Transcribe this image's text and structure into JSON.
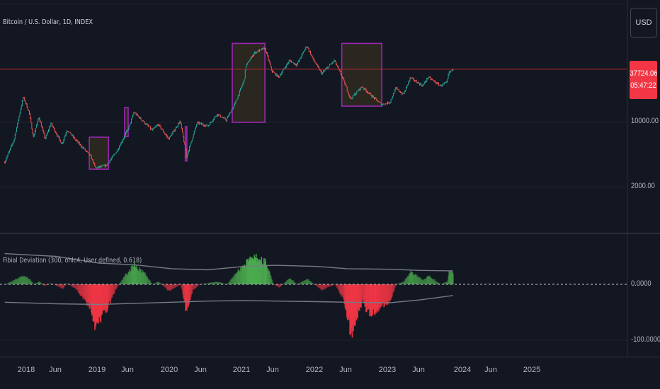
{
  "header": {
    "symbol_title": "Bitcoin / U.S. Dollar, 1D, INDEX",
    "currency": "USD"
  },
  "price_tag": {
    "price": "37724.06",
    "countdown": "05:47:22"
  },
  "indicator": {
    "label": "Fibial Deviation (300, ohlc4, User defined, 0.618)"
  },
  "colors": {
    "background": "#131722",
    "positive_fill": "#4caf50",
    "negative_fill": "#f23645",
    "band_line": "#787b86",
    "box_border": "#9c27b0",
    "box_fill": "#2e2a20",
    "price_line": "#b22833"
  },
  "chart_data": [
    {
      "type": "candlestick",
      "title": "Bitcoin / U.S. Dollar, 1D, INDEX",
      "y_scale": "log",
      "y_ticks": [
        "10000.00",
        "2000.00"
      ],
      "x_ticks": [
        "2018",
        "Jun",
        "2019",
        "Jun",
        "2020",
        "Jun",
        "2021",
        "Jun",
        "2022",
        "Jun",
        "2023",
        "Jun",
        "2024",
        "Jun",
        "2025"
      ],
      "x_range": [
        "2017-09-15",
        "2025-09-01"
      ],
      "current_price": 37724.06,
      "price_points": [
        [
          "2017-09-15",
          3700
        ],
        [
          "2017-11-01",
          6500
        ],
        [
          "2017-12-17",
          19000
        ],
        [
          "2018-01-15",
          13000
        ],
        [
          "2018-02-06",
          6900
        ],
        [
          "2018-03-05",
          11500
        ],
        [
          "2018-04-06",
          6600
        ],
        [
          "2018-05-05",
          9800
        ],
        [
          "2018-06-29",
          5800
        ],
        [
          "2018-07-25",
          8300
        ],
        [
          "2018-09-10",
          6300
        ],
        [
          "2018-11-20",
          4300
        ],
        [
          "2018-12-15",
          3200
        ],
        [
          "2019-02-07",
          3400
        ],
        [
          "2019-04-02",
          4900
        ],
        [
          "2019-05-30",
          8700
        ],
        [
          "2019-06-26",
          12900
        ],
        [
          "2019-08-15",
          10100
        ],
        [
          "2019-09-25",
          8200
        ],
        [
          "2019-10-26",
          9500
        ],
        [
          "2019-12-17",
          6600
        ],
        [
          "2020-02-13",
          10300
        ],
        [
          "2020-03-12",
          4900
        ],
        [
          "2020-03-13",
          4000
        ],
        [
          "2020-05-08",
          9900
        ],
        [
          "2020-07-01",
          9100
        ],
        [
          "2020-08-17",
          12300
        ],
        [
          "2020-10-01",
          10600
        ],
        [
          "2020-11-15",
          16000
        ],
        [
          "2020-12-31",
          29000
        ],
        [
          "2021-01-08",
          41000
        ],
        [
          "2021-02-20",
          57000
        ],
        [
          "2021-04-14",
          64000
        ],
        [
          "2021-05-19",
          36000
        ],
        [
          "2021-06-22",
          31000
        ],
        [
          "2021-08-15",
          47000
        ],
        [
          "2021-09-20",
          42000
        ],
        [
          "2021-11-10",
          68000
        ],
        [
          "2021-12-15",
          47000
        ],
        [
          "2022-01-24",
          34000
        ],
        [
          "2022-03-29",
          47000
        ],
        [
          "2022-05-10",
          30000
        ],
        [
          "2022-06-18",
          18000
        ],
        [
          "2022-08-14",
          24500
        ],
        [
          "2022-10-01",
          19500
        ],
        [
          "2022-11-21",
          15600
        ],
        [
          "2023-01-01",
          16500
        ],
        [
          "2023-02-01",
          23500
        ],
        [
          "2023-03-10",
          20000
        ],
        [
          "2023-04-14",
          30500
        ],
        [
          "2023-06-15",
          25000
        ],
        [
          "2023-07-13",
          31000
        ],
        [
          "2023-09-11",
          25000
        ],
        [
          "2023-10-15",
          27000
        ],
        [
          "2023-10-24",
          34500
        ],
        [
          "2023-11-15",
          37724
        ]
      ],
      "highlight_boxes": [
        {
          "start": "2018-11-14",
          "end": "2019-02-18",
          "low": 3100,
          "high": 6900
        },
        {
          "start": "2019-05-10",
          "end": "2019-05-28",
          "low": 7000,
          "high": 14500
        },
        {
          "start": "2020-03-10",
          "end": "2020-03-18",
          "low": 3800,
          "high": 9000
        },
        {
          "start": "2020-11-01",
          "end": "2021-04-14",
          "low": 10000,
          "high": 72000
        },
        {
          "start": "2022-05-05",
          "end": "2022-11-22",
          "low": 15000,
          "high": 72000
        }
      ]
    },
    {
      "type": "area",
      "title": "Fibial Deviation (300, ohlc4, User defined, 0.618)",
      "y_ticks": [
        "0.0000",
        "-100.0000"
      ],
      "zero_line": "dashed",
      "points": [
        [
          "2017-09-15",
          0
        ],
        [
          "2017-12-17",
          15
        ],
        [
          "2018-01-20",
          8
        ],
        [
          "2018-02-06",
          0
        ],
        [
          "2018-03-05",
          5
        ],
        [
          "2018-04-01",
          -3
        ],
        [
          "2018-05-05",
          2
        ],
        [
          "2018-06-29",
          -8
        ],
        [
          "2018-07-25",
          2
        ],
        [
          "2018-09-10",
          -10
        ],
        [
          "2018-11-15",
          -40
        ],
        [
          "2018-12-15",
          -78
        ],
        [
          "2019-01-15",
          -55
        ],
        [
          "2019-02-15",
          -40
        ],
        [
          "2019-03-20",
          -12
        ],
        [
          "2019-04-10",
          0
        ],
        [
          "2019-05-15",
          18
        ],
        [
          "2019-06-26",
          35
        ],
        [
          "2019-08-10",
          22
        ],
        [
          "2019-09-25",
          0
        ],
        [
          "2019-10-26",
          5
        ],
        [
          "2019-12-17",
          -12
        ],
        [
          "2020-02-13",
          0
        ],
        [
          "2020-03-13",
          -48
        ],
        [
          "2020-04-15",
          -10
        ],
        [
          "2020-05-20",
          0
        ],
        [
          "2020-08-17",
          5
        ],
        [
          "2020-10-01",
          0
        ],
        [
          "2020-11-15",
          18
        ],
        [
          "2021-01-08",
          38
        ],
        [
          "2021-02-20",
          48
        ],
        [
          "2021-04-14",
          40
        ],
        [
          "2021-05-25",
          0
        ],
        [
          "2021-06-22",
          -6
        ],
        [
          "2021-08-15",
          12
        ],
        [
          "2021-09-20",
          0
        ],
        [
          "2021-11-10",
          10
        ],
        [
          "2021-12-15",
          0
        ],
        [
          "2022-01-24",
          -10
        ],
        [
          "2022-03-29",
          0
        ],
        [
          "2022-05-10",
          -25
        ],
        [
          "2022-06-18",
          -88
        ],
        [
          "2022-07-20",
          -55
        ],
        [
          "2022-08-14",
          -30
        ],
        [
          "2022-09-20",
          -55
        ],
        [
          "2022-11-21",
          -38
        ],
        [
          "2022-12-30",
          -30
        ],
        [
          "2023-02-01",
          0
        ],
        [
          "2023-03-10",
          5
        ],
        [
          "2023-04-14",
          22
        ],
        [
          "2023-06-15",
          8
        ],
        [
          "2023-07-13",
          15
        ],
        [
          "2023-09-11",
          0
        ],
        [
          "2023-10-15",
          5
        ],
        [
          "2023-10-24",
          22
        ],
        [
          "2023-11-15",
          22
        ]
      ],
      "upper_band": [
        [
          "2017-09-15",
          55
        ],
        [
          "2018-06-01",
          50
        ],
        [
          "2019-01-01",
          38
        ],
        [
          "2019-07-01",
          35
        ],
        [
          "2020-01-01",
          28
        ],
        [
          "2020-07-01",
          26
        ],
        [
          "2021-01-01",
          32
        ],
        [
          "2021-06-01",
          34
        ],
        [
          "2022-01-01",
          32
        ],
        [
          "2022-06-01",
          28
        ],
        [
          "2023-01-01",
          27
        ],
        [
          "2023-06-01",
          25
        ],
        [
          "2023-11-15",
          24
        ]
      ],
      "lower_band": [
        [
          "2017-09-15",
          -32
        ],
        [
          "2018-06-01",
          -35
        ],
        [
          "2019-01-01",
          -36
        ],
        [
          "2019-07-01",
          -34
        ],
        [
          "2020-01-01",
          -32
        ],
        [
          "2020-07-01",
          -30
        ],
        [
          "2021-01-01",
          -29
        ],
        [
          "2021-06-01",
          -30
        ],
        [
          "2022-01-01",
          -31
        ],
        [
          "2022-06-01",
          -32
        ],
        [
          "2023-01-01",
          -33
        ],
        [
          "2023-06-01",
          -28
        ],
        [
          "2023-11-15",
          -20
        ]
      ]
    }
  ]
}
